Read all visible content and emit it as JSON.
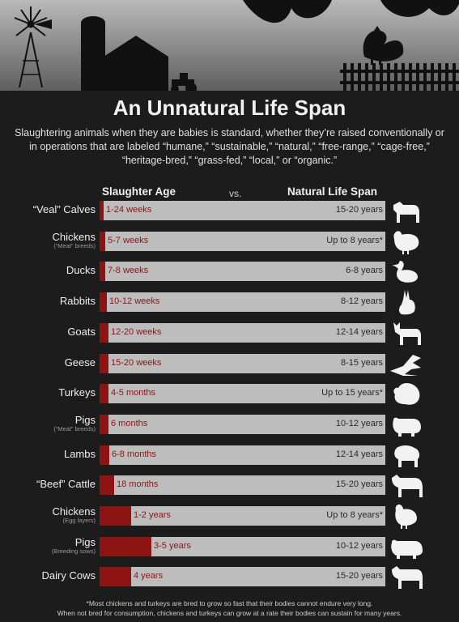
{
  "title": "An Unnatural Life Span",
  "subtitle": "Slaughtering animals when they are babies is standard, whether they’re raised conventionally or in operations that are labeled “humane,” “sustainable,” “natural,” “free-range,” “cage-free,” “heritage-bred,” “grass-fed,” “local,” or “organic.”",
  "header": {
    "slaughter": "Slaughter Age",
    "vs": "vs.",
    "natural": "Natural Life Span"
  },
  "footnote": {
    "line1": "*Most chickens and turkeys are bred to grow so fast that their bodies cannot endure very long.",
    "line2": "When not bred for consumption, chickens and turkeys can grow at a rate their bodies can sustain for many years."
  },
  "colors": {
    "slaughter": "#8e1414",
    "track": "#bdbdbd",
    "background": "#1c1c1c"
  },
  "chart_data": {
    "type": "bar",
    "title": "An Unnatural Life Span",
    "categories": [
      "“Veal” Calves",
      "Chickens",
      "Ducks",
      "Rabbits",
      "Goats",
      "Geese",
      "Turkeys",
      "Pigs",
      "Lambs",
      "“Beef” Cattle",
      "Chickens",
      "Pigs",
      "Dairy Cows"
    ],
    "subcategories": [
      "",
      "(“Meat” breeds)",
      "",
      "",
      "",
      "",
      "",
      "(“Meat” breeds)",
      "",
      "",
      "(Egg layers)",
      "(Breeding sows)",
      ""
    ],
    "slaughter_labels": [
      "1-24 weeks",
      "5-7 weeks",
      "7-8 weeks",
      "10-12 weeks",
      "12-20 weeks",
      "15-20 weeks",
      "4-5 months",
      "6 months",
      "6-8 months",
      "18 months",
      "1-2 years",
      "3-5 years",
      "4 years"
    ],
    "natural_labels": [
      "15-20 years",
      "Up to 8 years*",
      "6-8 years",
      "8-12 years",
      "12-14 years",
      "8-15 years",
      "Up to 15 years*",
      "10-12 years",
      "12-14 years",
      "15-20 years",
      "Up to 8 years*",
      "10-12 years",
      "15-20 years"
    ],
    "slaughter_fraction": [
      0.01,
      0.02,
      0.02,
      0.025,
      0.03,
      0.03,
      0.03,
      0.03,
      0.035,
      0.05,
      0.11,
      0.18,
      0.11
    ],
    "animal_icons": [
      "calf-icon",
      "chicken-icon",
      "duck-icon",
      "rabbit-icon",
      "goat-icon",
      "goose-icon",
      "turkey-icon",
      "pig-icon",
      "lamb-icon",
      "cattle-icon",
      "hen-icon",
      "sow-icon",
      "cow-icon"
    ]
  }
}
